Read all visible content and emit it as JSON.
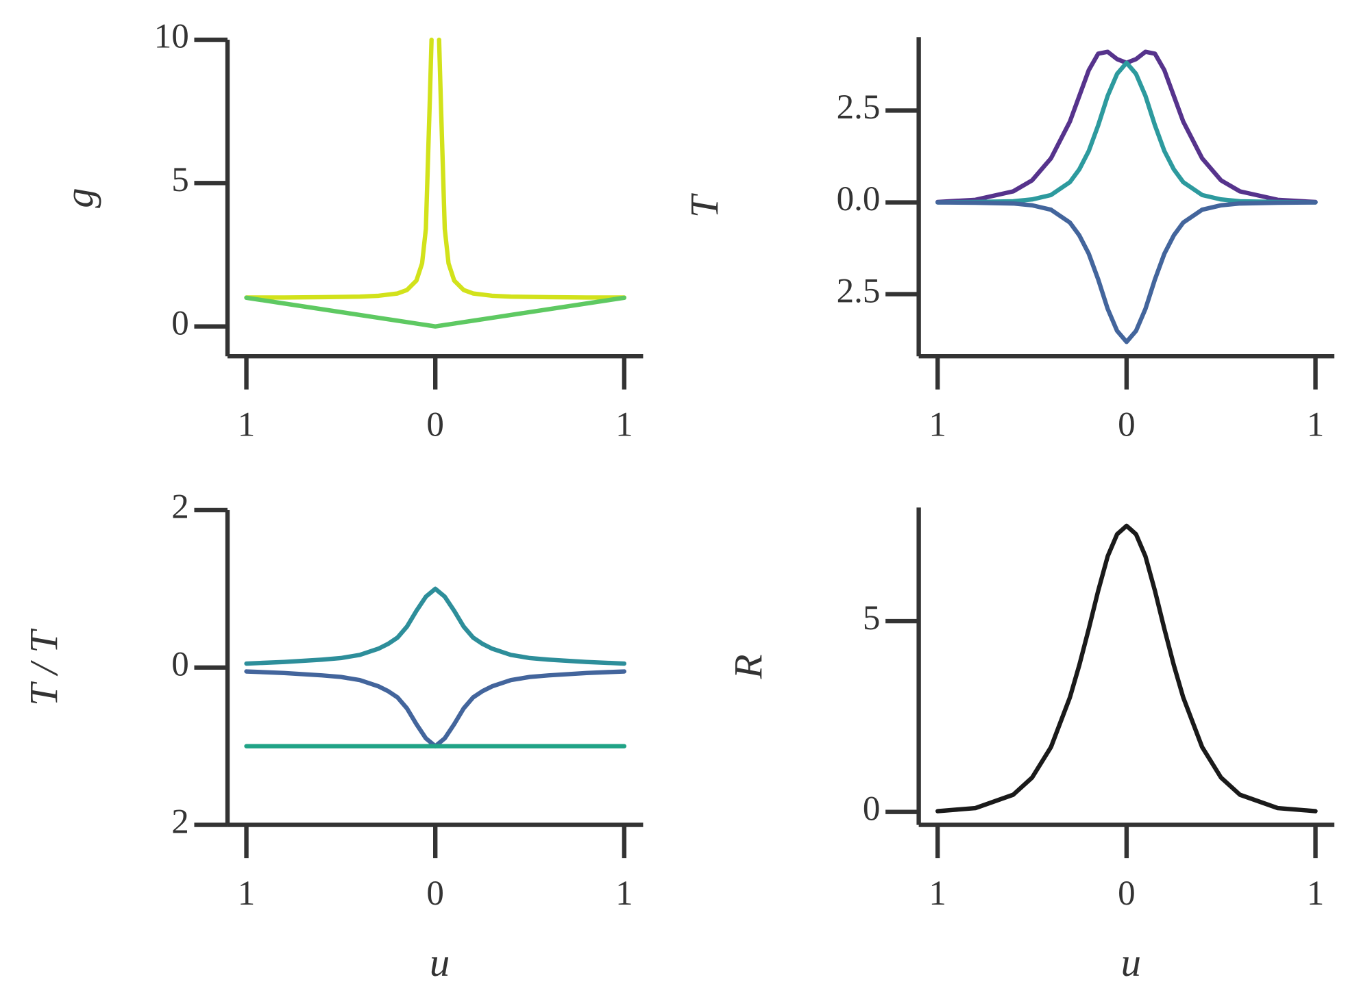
{
  "chart_data": [
    {
      "type": "line",
      "ylabel": "g",
      "x": [
        -1,
        -0.8,
        -0.6,
        -0.4,
        -0.3,
        -0.2,
        -0.15,
        -0.1,
        -0.07,
        -0.05,
        -0.03,
        -0.02,
        0,
        0.02,
        0.03,
        0.05,
        0.07,
        0.1,
        0.15,
        0.2,
        0.3,
        0.4,
        0.6,
        0.8,
        1
      ],
      "series": [
        {
          "color": "#d2e21b",
          "values": [
            1.01,
            1.01,
            1.02,
            1.04,
            1.07,
            1.15,
            1.27,
            1.6,
            2.2,
            3.4,
            7.7,
            10,
            null,
            10,
            7.7,
            3.4,
            2.2,
            1.6,
            1.27,
            1.15,
            1.07,
            1.04,
            1.02,
            1.01,
            1.01
          ]
        },
        {
          "color": "#5ec962",
          "values": [
            1,
            0.8,
            0.6,
            0.4,
            0.3,
            0.2,
            0.15,
            0.1,
            0.07,
            0.05,
            0.03,
            0.02,
            0,
            0.02,
            0.03,
            0.05,
            0.07,
            0.1,
            0.15,
            0.2,
            0.3,
            0.4,
            0.6,
            0.8,
            1
          ]
        }
      ],
      "xlim": [
        -1.1,
        1.1
      ],
      "ylim": [
        -1.04,
        10
      ],
      "xticks": [
        {
          "value": -1,
          "label": "1"
        },
        0,
        1
      ],
      "yticks": [
        0,
        5,
        10
      ]
    },
    {
      "type": "line",
      "ylabel": "T",
      "x": [
        -1,
        -0.8,
        -0.6,
        -0.5,
        -0.4,
        -0.3,
        -0.25,
        -0.2,
        -0.15,
        -0.1,
        -0.05,
        0,
        0.05,
        0.1,
        0.15,
        0.2,
        0.25,
        0.3,
        0.4,
        0.5,
        0.6,
        0.8,
        1
      ],
      "series": [
        {
          "color": "#56338c",
          "values": [
            0.01,
            0.07,
            0.3,
            0.6,
            1.2,
            2.2,
            2.9,
            3.6,
            4.05,
            4.1,
            3.9,
            3.8,
            3.9,
            4.1,
            4.05,
            3.6,
            2.9,
            2.2,
            1.2,
            0.6,
            0.3,
            0.07,
            0.01
          ]
        },
        {
          "color": "#2d9a9e",
          "values": [
            0,
            0.01,
            0.03,
            0.08,
            0.2,
            0.55,
            0.9,
            1.4,
            2.1,
            2.9,
            3.5,
            3.8,
            3.5,
            2.9,
            2.1,
            1.4,
            0.9,
            0.55,
            0.2,
            0.08,
            0.03,
            0.01,
            0
          ]
        },
        {
          "color": "#43659c",
          "values": [
            0,
            -0.01,
            -0.03,
            -0.08,
            -0.2,
            -0.55,
            -0.9,
            -1.4,
            -2.1,
            -2.9,
            -3.5,
            -3.8,
            -3.5,
            -2.9,
            -2.1,
            -1.4,
            -0.9,
            -0.55,
            -0.2,
            -0.08,
            -0.03,
            -0.01,
            0
          ]
        }
      ],
      "xlim": [
        -1.1,
        1.1
      ],
      "ylim": [
        -4.19,
        4.5
      ],
      "xticks": [
        {
          "value": -1,
          "label": "1"
        },
        0,
        1
      ],
      "yticks": [
        {
          "value": -2.5,
          "label": "2.5"
        },
        {
          "value": 0,
          "label": "0.0"
        },
        2.5
      ]
    },
    {
      "type": "line",
      "ylabel": "T  / T",
      "xlabel": "u",
      "x": [
        -1,
        -0.8,
        -0.6,
        -0.5,
        -0.4,
        -0.3,
        -0.25,
        -0.2,
        -0.15,
        -0.1,
        -0.05,
        0,
        0.05,
        0.1,
        0.15,
        0.2,
        0.25,
        0.3,
        0.4,
        0.5,
        0.6,
        0.8,
        1
      ],
      "series": [
        {
          "color": "#2d8e9a",
          "values": [
            0.05,
            0.07,
            0.1,
            0.12,
            0.16,
            0.24,
            0.3,
            0.38,
            0.52,
            0.72,
            0.9,
            1,
            0.9,
            0.72,
            0.52,
            0.38,
            0.3,
            0.24,
            0.16,
            0.12,
            0.1,
            0.07,
            0.05
          ]
        },
        {
          "color": "#43659c",
          "values": [
            -0.05,
            -0.07,
            -0.1,
            -0.12,
            -0.16,
            -0.24,
            -0.3,
            -0.38,
            -0.52,
            -0.72,
            -0.9,
            -1,
            -0.9,
            -0.72,
            -0.52,
            -0.38,
            -0.3,
            -0.24,
            -0.16,
            -0.12,
            -0.1,
            -0.07,
            -0.05
          ]
        },
        {
          "color": "#20a386",
          "values": [
            -1,
            -1,
            -1,
            -1,
            -1,
            -1,
            -1,
            -1,
            -1,
            -1,
            -1,
            -1,
            -1,
            -1,
            -1,
            -1,
            -1,
            -1,
            -1,
            -1,
            -1,
            -1,
            -1
          ]
        }
      ],
      "xlim": [
        -1.1,
        1.1
      ],
      "ylim": [
        -2,
        2
      ],
      "xticks": [
        {
          "value": -1,
          "label": "1"
        },
        0,
        1
      ],
      "yticks": [
        {
          "value": -2,
          "label": "2"
        },
        0,
        2
      ]
    },
    {
      "type": "line",
      "ylabel": "R",
      "xlabel": "u",
      "x": [
        -1,
        -0.8,
        -0.6,
        -0.5,
        -0.4,
        -0.3,
        -0.25,
        -0.2,
        -0.15,
        -0.1,
        -0.05,
        0,
        0.05,
        0.1,
        0.15,
        0.2,
        0.25,
        0.3,
        0.4,
        0.5,
        0.6,
        0.8,
        1
      ],
      "series": [
        {
          "color": "#1a1a1a",
          "values": [
            0.02,
            0.1,
            0.45,
            0.9,
            1.7,
            3.0,
            3.85,
            4.8,
            5.8,
            6.7,
            7.28,
            7.5,
            7.28,
            6.7,
            5.8,
            4.8,
            3.85,
            3.0,
            1.7,
            0.9,
            0.45,
            0.1,
            0.02
          ]
        }
      ],
      "xlim": [
        -1.1,
        1.1
      ],
      "ylim": [
        -0.34,
        7.98
      ],
      "xticks": [
        {
          "value": -1,
          "label": "1"
        },
        0,
        1
      ],
      "yticks": [
        0,
        5
      ]
    }
  ]
}
